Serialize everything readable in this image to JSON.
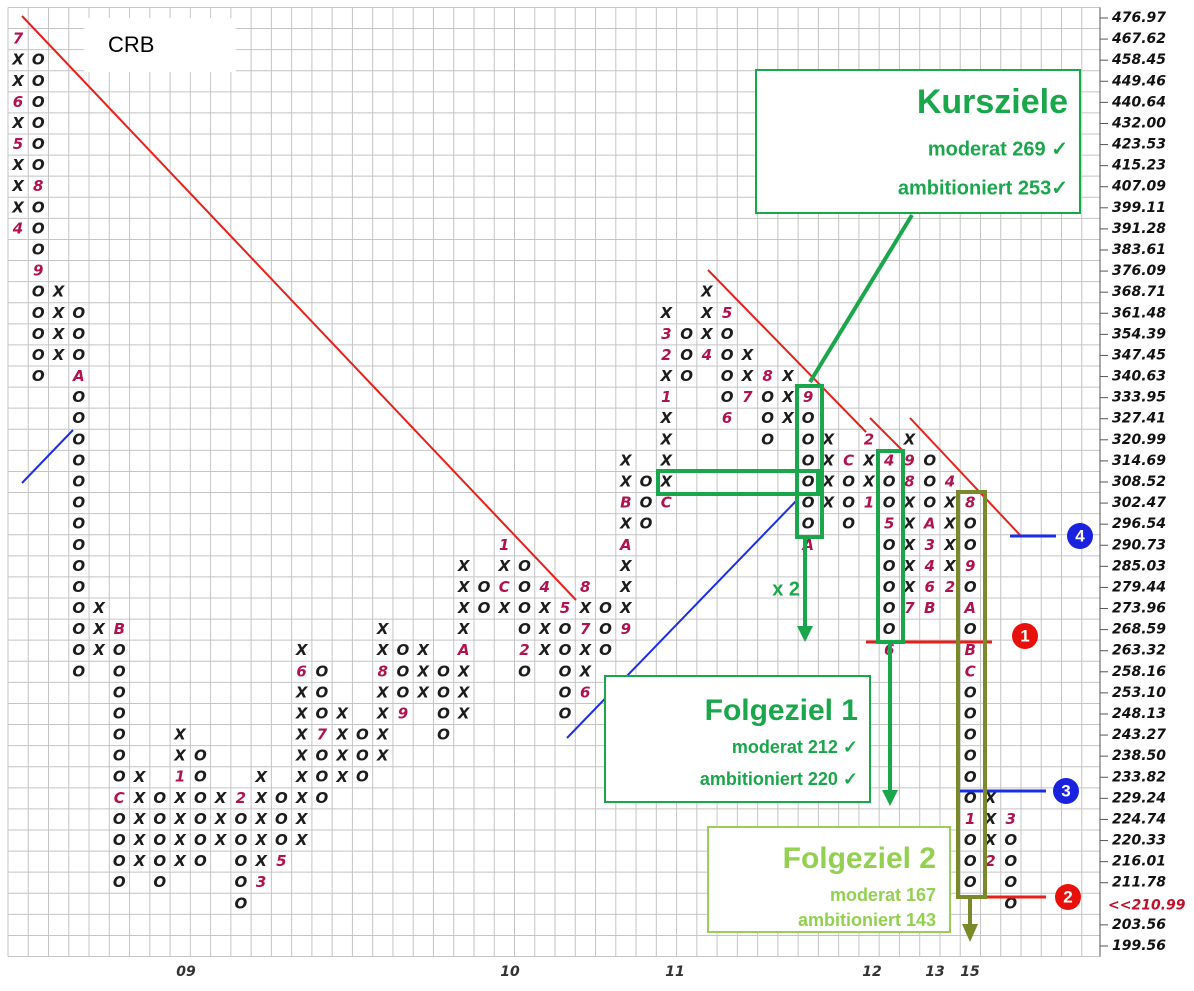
{
  "chart_data": {
    "type": "point-and-figure",
    "title": "CRB",
    "ylim": [
      199.56,
      476.97
    ],
    "log": true,
    "grid": true,
    "yticks": [
      476.97,
      467.62,
      458.45,
      449.46,
      440.64,
      {
        "value": 432,
        "label": "432.00"
      },
      423.53,
      415.23,
      407.09,
      399.11,
      391.28,
      383.61,
      376.09,
      368.71,
      361.48,
      354.39,
      347.45,
      340.63,
      333.95,
      327.41,
      320.99,
      314.69,
      308.52,
      302.47,
      296.54,
      290.73,
      285.03,
      279.44,
      273.96,
      268.59,
      263.32,
      258.16,
      {
        "value": 253.1,
        "label": "253.10"
      },
      248.13,
      243.27,
      {
        "value": 238.5,
        "label": "238.50"
      },
      233.82,
      229.24,
      224.74,
      220.33,
      216.01,
      211.78,
      203.56,
      199.56
    ],
    "price_marker": {
      "value": 210.99,
      "label": "<<210.99"
    },
    "x_labels": [
      "09",
      "10",
      "11",
      "12",
      "13",
      "15"
    ],
    "columns": [
      {
        "top": 467.62,
        "boxes": [
          "7",
          "X",
          "X",
          "6",
          "X",
          "5",
          "X",
          "X",
          "X",
          "4"
        ]
      },
      {
        "top": 458.45,
        "boxes": [
          "O",
          "O",
          "O",
          "O",
          "O",
          "O",
          "8",
          "O",
          "O",
          "O",
          "9",
          "O",
          "O",
          "O",
          "O",
          "O"
        ]
      },
      {
        "top": 368.71,
        "boxes": [
          "X",
          "X",
          "X",
          "X"
        ]
      },
      {
        "top": 361.48,
        "boxes": [
          "O",
          "O",
          "O",
          "A",
          "O",
          "O",
          "O",
          "O",
          "O",
          "O",
          "O",
          "O",
          "O",
          "O",
          "O",
          "O",
          "O",
          "O"
        ]
      },
      {
        "top": 273.96,
        "boxes": [
          "X",
          "X",
          "X"
        ]
      },
      {
        "top": 268.59,
        "boxes": [
          "B",
          "O",
          "O",
          "O",
          "O",
          "O",
          "O",
          "O",
          "C",
          "O",
          "O",
          "O",
          "O"
        ]
      },
      {
        "top": 233.82,
        "boxes": [
          "X",
          "X",
          "X",
          "X",
          "X"
        ]
      },
      {
        "top": 229.24,
        "boxes": [
          "O",
          "O",
          "O",
          "O",
          "O"
        ]
      },
      {
        "top": 243.27,
        "boxes": [
          "X",
          "X",
          "1",
          "X",
          "X",
          "X",
          "X"
        ]
      },
      {
        "top": 238.5,
        "boxes": [
          "O",
          "O",
          "O",
          "O",
          "O",
          "O"
        ]
      },
      {
        "top": 229.24,
        "boxes": [
          "X",
          "X",
          "X"
        ]
      },
      {
        "top": 229.24,
        "boxes": [
          "2",
          "O",
          "O",
          "O",
          "O",
          "O"
        ]
      },
      {
        "top": 233.82,
        "boxes": [
          "X",
          "X",
          "X",
          "X",
          "X",
          "3"
        ]
      },
      {
        "top": 229.24,
        "boxes": [
          "O",
          "O",
          "O",
          "5"
        ]
      },
      {
        "top": 263.32,
        "boxes": [
          "X",
          "6",
          "X",
          "X",
          "X",
          "X",
          "X",
          "X",
          "X",
          "X"
        ]
      },
      {
        "top": 258.16,
        "boxes": [
          "O",
          "O",
          "O",
          "7",
          "O",
          "O",
          "O"
        ]
      },
      {
        "top": 248.13,
        "boxes": [
          "X",
          "X",
          "X",
          "X"
        ]
      },
      {
        "top": 243.27,
        "boxes": [
          "O",
          "O",
          "O"
        ]
      },
      {
        "top": 268.59,
        "boxes": [
          "X",
          "X",
          "8",
          "X",
          "X",
          "X",
          "X"
        ]
      },
      {
        "top": 263.32,
        "boxes": [
          "O",
          "O",
          "O",
          "9"
        ]
      },
      {
        "top": 263.32,
        "boxes": [
          "X",
          "X",
          "X"
        ]
      },
      {
        "top": 258.16,
        "boxes": [
          "O",
          "O",
          "O",
          "O"
        ]
      },
      {
        "top": 285.03,
        "boxes": [
          "X",
          "X",
          "X",
          "X",
          "A",
          "X",
          "X",
          "X"
        ]
      },
      {
        "top": 279.44,
        "boxes": [
          "O",
          "O"
        ]
      },
      {
        "top": 290.73,
        "boxes": [
          "1",
          "X",
          "C",
          "X"
        ]
      },
      {
        "top": 285.03,
        "boxes": [
          "O",
          "O",
          "O",
          "O",
          "2",
          "O"
        ]
      },
      {
        "top": 279.44,
        "boxes": [
          "4",
          "X",
          "X",
          "X"
        ]
      },
      {
        "top": 273.96,
        "boxes": [
          "5",
          "O",
          "O",
          "O",
          "O",
          "O"
        ]
      },
      {
        "top": 279.44,
        "boxes": [
          "8",
          "X",
          "7",
          "X",
          "X",
          "6"
        ]
      },
      {
        "top": 273.96,
        "boxes": [
          "O",
          "O",
          "O"
        ]
      },
      {
        "top": 314.69,
        "boxes": [
          "X",
          "X",
          "B",
          "X",
          "A",
          "X",
          "X",
          "X",
          "9"
        ]
      },
      {
        "top": 308.52,
        "boxes": [
          "O",
          "O",
          "O"
        ]
      },
      {
        "top": 361.48,
        "boxes": [
          "X",
          "3",
          "2",
          "X",
          "1",
          "X",
          "X",
          "X",
          "X",
          "C"
        ]
      },
      {
        "top": 354.39,
        "boxes": [
          "O",
          "O",
          "O"
        ]
      },
      {
        "top": 368.71,
        "boxes": [
          "X",
          "X",
          "X",
          "4"
        ]
      },
      {
        "top": 361.48,
        "boxes": [
          "5",
          "O",
          "O",
          "O",
          "O",
          "6"
        ]
      },
      {
        "top": 347.45,
        "boxes": [
          "X",
          "X",
          "7"
        ]
      },
      {
        "top": 340.63,
        "boxes": [
          "8",
          "O",
          "O",
          "O"
        ]
      },
      {
        "top": 340.63,
        "boxes": [
          "X",
          "X",
          "X"
        ]
      },
      {
        "top": 333.95,
        "boxes": [
          "9",
          "O",
          "O",
          "O",
          "O",
          "O",
          "O",
          "A"
        ]
      },
      {
        "top": 320.99,
        "boxes": [
          "X",
          "X",
          "X",
          "X"
        ]
      },
      {
        "top": 314.69,
        "boxes": [
          "C",
          "O",
          "O",
          "O"
        ]
      },
      {
        "top": 320.99,
        "boxes": [
          "2",
          "X",
          "X",
          "1"
        ]
      },
      {
        "top": 314.69,
        "boxes": [
          "4",
          "O",
          "O",
          "5",
          "O",
          "O",
          "O",
          "O",
          "O",
          "6"
        ]
      },
      {
        "top": 320.99,
        "boxes": [
          "X",
          "9",
          "8",
          "X",
          "X",
          "X",
          "X",
          "X",
          "7"
        ]
      },
      {
        "top": 314.69,
        "boxes": [
          "O",
          "O",
          "O",
          "A",
          "3",
          "4",
          "6",
          "B"
        ]
      },
      {
        "top": 308.52,
        "boxes": [
          "4",
          "X",
          "X",
          "X",
          "X",
          "2"
        ]
      },
      {
        "top": 302.47,
        "boxes": [
          "8",
          "O",
          "O",
          "9",
          "O",
          "A",
          "O",
          "B",
          "C",
          "O",
          "O",
          "O",
          "O",
          "O",
          "O",
          "1",
          "O",
          "O",
          "O"
        ]
      },
      {
        "top": 229.24,
        "boxes": [
          "X",
          "X",
          "X",
          "2"
        ]
      },
      {
        "top": 224.74,
        "boxes": [
          "3",
          "O",
          "O",
          "O",
          "O"
        ]
      }
    ],
    "annotations": {
      "kursziele": {
        "title": "Kursziele",
        "lines": [
          "moderat 269 ✓",
          "ambitioniert 253✓"
        ]
      },
      "folgeziel_1": {
        "title": "Folgeziel 1",
        "lines": [
          "moderat 212 ✓",
          "ambitioniert 220 ✓"
        ]
      },
      "folgeziel_2": {
        "title": "Folgeziel 2",
        "lines": [
          "moderat 167",
          "ambitioniert 143"
        ]
      },
      "multiplier": "x 2",
      "markers": [
        "1",
        "2",
        "3",
        "4"
      ]
    }
  }
}
